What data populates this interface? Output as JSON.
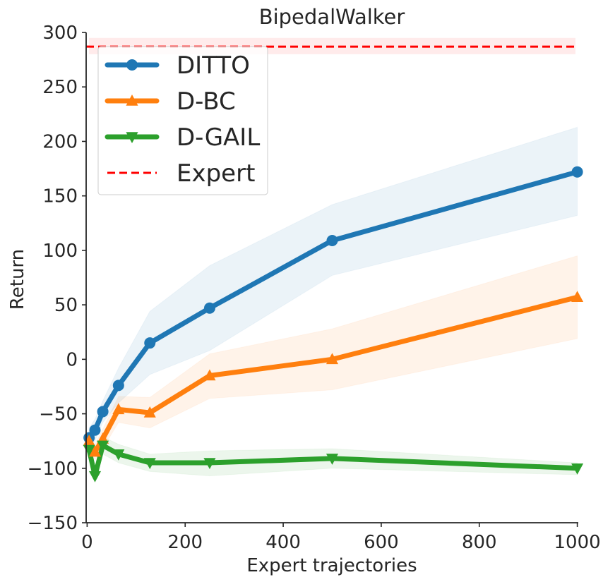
{
  "chart_data": {
    "type": "line",
    "title": "BipedalWalker",
    "xlabel": "Expert trajectories",
    "ylabel": "Return",
    "xlim": [
      -2,
      1002
    ],
    "ylim": [
      -150,
      300
    ],
    "xticks": [
      0,
      200,
      400,
      600,
      800,
      1000
    ],
    "xtick_labels": [
      "0",
      "200",
      "400",
      "600",
      "800",
      "1000"
    ],
    "yticks": [
      -150,
      -100,
      -50,
      0,
      50,
      100,
      150,
      200,
      250,
      300
    ],
    "ytick_labels": [
      "−150",
      "−100",
      "−50",
      "0",
      "50",
      "100",
      "150",
      "200",
      "250",
      "300"
    ],
    "grid": false,
    "legend_position": "top-left",
    "series": [
      {
        "name": "DITTO",
        "color": "#1f77b4",
        "marker": "circle",
        "x": [
          4,
          16,
          32,
          64,
          128,
          250,
          500,
          1000
        ],
        "y": [
          -72,
          -65,
          -48,
          -24,
          15,
          47,
          109,
          172
        ],
        "lower": [
          -80,
          -75,
          -58,
          -40,
          -14,
          8,
          77,
          132
        ],
        "upper": [
          -63,
          -55,
          -38,
          -8,
          44,
          86,
          142,
          213
        ]
      },
      {
        "name": "D-BC",
        "color": "#ff7f0e",
        "marker": "triangle-up",
        "x": [
          4,
          16,
          32,
          64,
          128,
          250,
          500,
          1000
        ],
        "y": [
          -75,
          -85,
          -73,
          -46,
          -49,
          -15,
          0,
          57
        ],
        "lower": [
          -82,
          -92,
          -82,
          -58,
          -63,
          -36,
          -28,
          19
        ],
        "upper": [
          -68,
          -78,
          -64,
          -34,
          -35,
          5,
          28,
          95
        ]
      },
      {
        "name": "D-GAIL",
        "color": "#2ca02c",
        "marker": "triangle-down",
        "x": [
          4,
          16,
          32,
          64,
          128,
          250,
          500,
          1000
        ],
        "y": [
          -83,
          -107,
          -79,
          -87,
          -95,
          -95,
          -91,
          -100
        ],
        "lower": [
          -90,
          -113,
          -87,
          -95,
          -103,
          -107,
          -100,
          -106
        ],
        "upper": [
          -76,
          -101,
          -71,
          -78,
          -87,
          -84,
          -82,
          -95
        ]
      },
      {
        "name": "Expert",
        "color": "#ff0000",
        "style": "dashed",
        "y_const": 287,
        "band": [
          280,
          295
        ]
      }
    ]
  }
}
